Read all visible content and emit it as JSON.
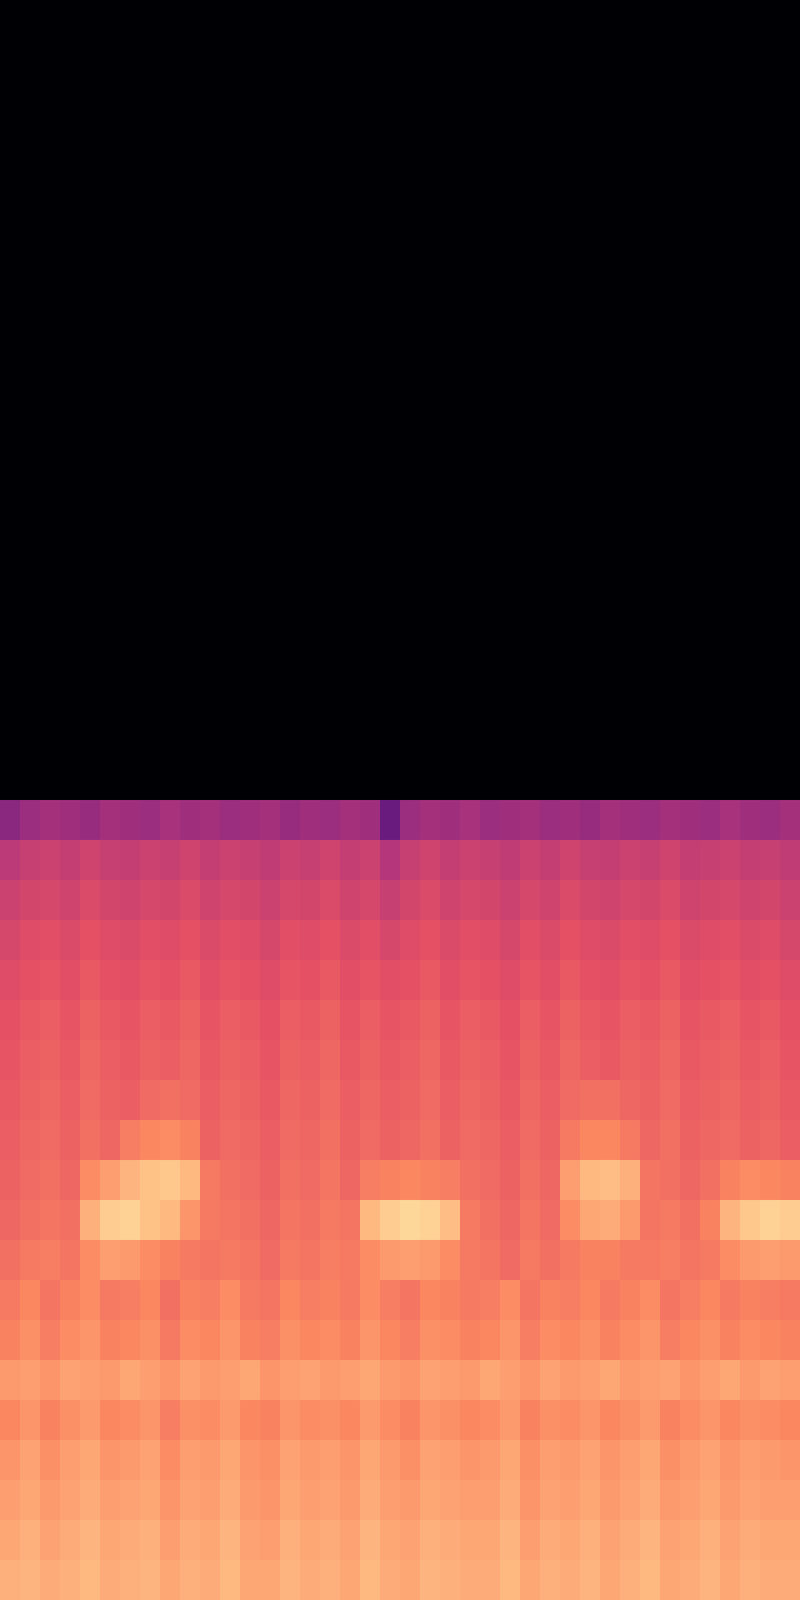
{
  "chart_data": {
    "type": "heatmap",
    "color": "magma",
    "tick_labels": false,
    "zlim": [
      0,
      100
    ],
    "cells": [
      [
        0,
        0,
        0,
        0,
        0,
        0,
        0,
        0,
        0,
        0,
        0,
        0,
        0,
        0,
        0,
        0,
        0,
        0,
        0,
        0,
        0,
        0,
        0,
        0,
        0,
        0,
        0,
        0,
        0,
        0,
        0,
        0,
        0,
        0,
        0,
        0,
        0,
        0,
        0,
        0
      ],
      [
        0,
        0,
        0,
        0,
        0,
        0,
        0,
        0,
        0,
        0,
        0,
        0,
        0,
        0,
        0,
        0,
        0,
        0,
        0,
        0,
        0,
        0,
        0,
        0,
        0,
        0,
        0,
        0,
        0,
        0,
        0,
        0,
        0,
        0,
        0,
        0,
        0,
        0,
        0,
        0
      ],
      [
        0,
        0,
        0,
        0,
        0,
        0,
        0,
        0,
        0,
        0,
        0,
        0,
        0,
        0,
        0,
        0,
        0,
        0,
        0,
        0,
        0,
        0,
        0,
        0,
        0,
        0,
        0,
        0,
        0,
        0,
        0,
        0,
        0,
        0,
        0,
        0,
        0,
        0,
        0,
        0
      ],
      [
        0,
        0,
        0,
        0,
        0,
        0,
        0,
        0,
        0,
        0,
        0,
        0,
        0,
        0,
        0,
        0,
        0,
        0,
        0,
        0,
        0,
        0,
        0,
        0,
        0,
        0,
        0,
        0,
        0,
        0,
        0,
        0,
        0,
        0,
        0,
        0,
        0,
        0,
        0,
        0
      ],
      [
        0,
        0,
        0,
        0,
        0,
        0,
        0,
        0,
        0,
        0,
        0,
        0,
        0,
        0,
        0,
        0,
        0,
        0,
        0,
        0,
        0,
        0,
        0,
        0,
        0,
        0,
        0,
        0,
        0,
        0,
        0,
        0,
        0,
        0,
        0,
        0,
        0,
        0,
        0,
        0
      ],
      [
        0,
        0,
        0,
        0,
        0,
        0,
        0,
        0,
        0,
        0,
        0,
        0,
        0,
        0,
        0,
        0,
        0,
        0,
        0,
        0,
        0,
        0,
        0,
        0,
        0,
        0,
        0,
        0,
        0,
        0,
        0,
        0,
        0,
        0,
        0,
        0,
        0,
        0,
        0,
        0
      ],
      [
        0,
        0,
        0,
        0,
        0,
        0,
        0,
        0,
        0,
        0,
        0,
        0,
        0,
        0,
        0,
        0,
        0,
        0,
        0,
        0,
        0,
        0,
        0,
        0,
        0,
        0,
        0,
        0,
        0,
        0,
        0,
        0,
        0,
        0,
        0,
        0,
        0,
        0,
        0,
        0
      ],
      [
        0,
        0,
        0,
        0,
        0,
        0,
        0,
        0,
        0,
        0,
        0,
        0,
        0,
        0,
        0,
        0,
        0,
        0,
        0,
        0,
        0,
        0,
        0,
        0,
        0,
        0,
        0,
        0,
        0,
        0,
        0,
        0,
        0,
        0,
        0,
        0,
        0,
        0,
        0,
        0
      ],
      [
        0,
        0,
        0,
        0,
        0,
        0,
        0,
        0,
        0,
        0,
        0,
        0,
        0,
        0,
        0,
        0,
        0,
        0,
        0,
        0,
        0,
        0,
        0,
        0,
        0,
        0,
        0,
        0,
        0,
        0,
        0,
        0,
        0,
        0,
        0,
        0,
        0,
        0,
        0,
        0
      ],
      [
        0,
        0,
        0,
        0,
        0,
        0,
        0,
        0,
        0,
        0,
        0,
        0,
        0,
        0,
        0,
        0,
        0,
        0,
        0,
        0,
        0,
        0,
        0,
        0,
        0,
        0,
        0,
        0,
        0,
        0,
        0,
        0,
        0,
        0,
        0,
        0,
        0,
        0,
        0,
        0
      ],
      [
        0,
        0,
        0,
        0,
        0,
        0,
        0,
        0,
        0,
        0,
        0,
        0,
        0,
        0,
        0,
        0,
        0,
        0,
        0,
        0,
        0,
        0,
        0,
        0,
        0,
        0,
        0,
        0,
        0,
        0,
        0,
        0,
        0,
        0,
        0,
        0,
        0,
        0,
        0,
        0
      ],
      [
        0,
        0,
        0,
        0,
        0,
        0,
        0,
        0,
        0,
        0,
        0,
        0,
        0,
        0,
        0,
        0,
        0,
        0,
        0,
        0,
        0,
        0,
        0,
        0,
        0,
        0,
        0,
        0,
        0,
        0,
        0,
        0,
        0,
        0,
        0,
        0,
        0,
        0,
        0,
        0
      ],
      [
        0,
        0,
        0,
        0,
        0,
        0,
        0,
        0,
        0,
        0,
        0,
        0,
        0,
        0,
        0,
        0,
        0,
        0,
        0,
        0,
        0,
        0,
        0,
        0,
        0,
        0,
        0,
        0,
        0,
        0,
        0,
        0,
        0,
        0,
        0,
        0,
        0,
        0,
        0,
        0
      ],
      [
        0,
        0,
        0,
        0,
        0,
        0,
        0,
        0,
        0,
        0,
        0,
        0,
        0,
        0,
        0,
        0,
        0,
        0,
        0,
        0,
        0,
        0,
        0,
        0,
        0,
        0,
        0,
        0,
        0,
        0,
        0,
        0,
        0,
        0,
        0,
        0,
        0,
        0,
        0,
        0
      ],
      [
        0,
        0,
        0,
        0,
        0,
        0,
        0,
        0,
        0,
        0,
        0,
        0,
        0,
        0,
        0,
        0,
        0,
        0,
        0,
        0,
        0,
        0,
        0,
        0,
        0,
        0,
        0,
        0,
        0,
        0,
        0,
        0,
        0,
        0,
        0,
        0,
        0,
        0,
        0,
        0
      ],
      [
        0,
        0,
        0,
        0,
        0,
        0,
        0,
        0,
        0,
        0,
        0,
        0,
        0,
        0,
        0,
        0,
        0,
        0,
        0,
        0,
        0,
        0,
        0,
        0,
        0,
        0,
        0,
        0,
        0,
        0,
        0,
        0,
        0,
        0,
        0,
        0,
        0,
        0,
        0,
        0
      ],
      [
        0,
        0,
        0,
        0,
        0,
        0,
        0,
        0,
        0,
        0,
        0,
        0,
        0,
        0,
        0,
        0,
        0,
        0,
        0,
        0,
        0,
        0,
        0,
        0,
        0,
        0,
        0,
        0,
        0,
        0,
        0,
        0,
        0,
        0,
        0,
        0,
        0,
        0,
        0,
        0
      ],
      [
        0,
        0,
        0,
        0,
        0,
        0,
        0,
        0,
        0,
        0,
        0,
        0,
        0,
        0,
        0,
        0,
        0,
        0,
        0,
        0,
        0,
        0,
        0,
        0,
        0,
        0,
        0,
        0,
        0,
        0,
        0,
        0,
        0,
        0,
        0,
        0,
        0,
        0,
        0,
        0
      ],
      [
        0,
        0,
        0,
        0,
        0,
        0,
        0,
        0,
        0,
        0,
        0,
        0,
        0,
        0,
        0,
        0,
        0,
        0,
        0,
        0,
        0,
        0,
        0,
        0,
        0,
        0,
        0,
        0,
        0,
        0,
        0,
        0,
        0,
        0,
        0,
        0,
        0,
        0,
        0,
        0
      ],
      [
        0,
        0,
        0,
        0,
        0,
        0,
        0,
        0,
        0,
        0,
        0,
        0,
        0,
        0,
        0,
        0,
        0,
        0,
        0,
        0,
        0,
        0,
        0,
        0,
        0,
        0,
        0,
        0,
        0,
        0,
        0,
        0,
        0,
        0,
        0,
        0,
        0,
        0,
        0,
        0
      ],
      [
        40,
        44,
        46,
        45,
        43,
        46,
        45,
        44,
        47,
        45,
        46,
        44,
        45,
        46,
        43,
        45,
        44,
        46,
        45,
        32,
        44,
        46,
        45,
        47,
        44,
        45,
        46,
        44,
        45,
        43,
        46,
        45,
        44,
        46,
        45,
        44,
        47,
        45,
        44,
        46
      ],
      [
        52,
        55,
        56,
        54,
        57,
        55,
        54,
        56,
        55,
        57,
        54,
        56,
        55,
        53,
        56,
        55,
        57,
        54,
        56,
        50,
        55,
        57,
        54,
        56,
        55,
        53,
        56,
        54,
        57,
        55,
        54,
        56,
        55,
        57,
        54,
        55,
        56,
        54,
        55,
        53
      ],
      [
        56,
        58,
        59,
        57,
        60,
        58,
        57,
        59,
        58,
        60,
        57,
        59,
        58,
        56,
        59,
        58,
        60,
        57,
        59,
        55,
        58,
        60,
        57,
        59,
        58,
        56,
        59,
        57,
        60,
        58,
        57,
        59,
        58,
        60,
        57,
        58,
        59,
        57,
        58,
        56
      ],
      [
        59,
        61,
        62,
        60,
        63,
        61,
        60,
        62,
        61,
        63,
        60,
        62,
        61,
        59,
        62,
        61,
        63,
        60,
        62,
        59,
        61,
        63,
        60,
        62,
        61,
        59,
        62,
        60,
        63,
        61,
        60,
        62,
        61,
        63,
        60,
        61,
        62,
        60,
        61,
        59
      ],
      [
        61,
        63,
        64,
        62,
        65,
        63,
        62,
        64,
        63,
        65,
        62,
        64,
        63,
        61,
        64,
        63,
        65,
        62,
        64,
        62,
        63,
        65,
        62,
        64,
        63,
        61,
        64,
        62,
        65,
        63,
        62,
        64,
        63,
        65,
        62,
        63,
        64,
        62,
        63,
        61
      ],
      [
        63,
        65,
        66,
        64,
        67,
        65,
        64,
        66,
        65,
        67,
        64,
        66,
        65,
        63,
        66,
        65,
        67,
        64,
        66,
        64,
        65,
        67,
        64,
        66,
        65,
        63,
        66,
        64,
        67,
        65,
        64,
        66,
        65,
        67,
        64,
        65,
        66,
        64,
        65,
        63
      ],
      [
        64,
        66,
        67,
        65,
        68,
        66,
        65,
        67,
        66,
        68,
        65,
        67,
        66,
        64,
        67,
        66,
        68,
        65,
        67,
        65,
        66,
        68,
        65,
        67,
        66,
        64,
        67,
        65,
        68,
        66,
        65,
        67,
        66,
        68,
        65,
        66,
        67,
        65,
        66,
        64
      ],
      [
        65,
        67,
        68,
        66,
        69,
        67,
        66,
        69,
        70,
        69,
        66,
        68,
        67,
        65,
        68,
        67,
        69,
        66,
        68,
        66,
        67,
        69,
        66,
        68,
        67,
        65,
        68,
        66,
        69,
        70,
        70,
        68,
        67,
        69,
        66,
        67,
        68,
        66,
        67,
        65
      ],
      [
        66,
        68,
        69,
        67,
        70,
        68,
        73,
        75,
        76,
        74,
        67,
        69,
        68,
        66,
        69,
        68,
        70,
        67,
        69,
        67,
        68,
        70,
        67,
        69,
        68,
        66,
        69,
        67,
        72,
        75,
        75,
        72,
        68,
        70,
        67,
        68,
        69,
        67,
        68,
        66
      ],
      [
        67,
        69,
        70,
        68,
        76,
        80,
        85,
        88,
        89,
        86,
        72,
        70,
        69,
        67,
        70,
        69,
        71,
        68,
        73,
        74,
        75,
        74,
        73,
        70,
        69,
        67,
        70,
        68,
        80,
        86,
        87,
        84,
        71,
        70,
        68,
        70,
        74,
        76,
        75,
        74
      ],
      [
        68,
        70,
        71,
        70,
        84,
        90,
        91,
        88,
        86,
        78,
        72,
        71,
        70,
        68,
        71,
        70,
        72,
        71,
        86,
        90,
        92,
        91,
        87,
        72,
        70,
        68,
        71,
        69,
        76,
        82,
        83,
        79,
        71,
        72,
        70,
        74,
        85,
        89,
        91,
        90
      ],
      [
        70,
        72,
        73,
        71,
        76,
        80,
        79,
        76,
        74,
        72,
        71,
        72,
        71,
        69,
        72,
        71,
        73,
        72,
        76,
        79,
        80,
        79,
        76,
        72,
        71,
        69,
        72,
        70,
        72,
        74,
        74,
        72,
        72,
        73,
        71,
        72,
        76,
        79,
        80,
        79
      ],
      [
        72,
        75,
        71,
        74,
        76,
        72,
        73,
        75,
        70,
        74,
        73,
        76,
        72,
        71,
        75,
        73,
        74,
        72,
        76,
        73,
        71,
        75,
        74,
        72,
        73,
        76,
        71,
        74,
        73,
        75,
        72,
        74,
        76,
        71,
        73,
        75,
        72,
        74,
        73,
        72
      ],
      [
        74,
        77,
        73,
        76,
        78,
        74,
        75,
        77,
        72,
        76,
        75,
        78,
        74,
        73,
        77,
        75,
        76,
        74,
        78,
        75,
        73,
        77,
        76,
        74,
        75,
        78,
        73,
        76,
        75,
        77,
        74,
        76,
        78,
        73,
        75,
        77,
        74,
        76,
        75,
        74
      ],
      [
        79,
        80,
        78,
        81,
        80,
        79,
        82,
        80,
        78,
        81,
        79,
        80,
        82,
        78,
        80,
        81,
        79,
        80,
        82,
        79,
        78,
        81,
        80,
        79,
        82,
        80,
        78,
        81,
        79,
        80,
        82,
        79,
        80,
        81,
        78,
        80,
        82,
        79,
        81,
        80
      ],
      [
        75,
        78,
        74,
        77,
        79,
        75,
        76,
        78,
        73,
        77,
        76,
        79,
        75,
        74,
        78,
        76,
        77,
        75,
        79,
        76,
        74,
        78,
        77,
        75,
        76,
        79,
        74,
        77,
        76,
        78,
        75,
        77,
        79,
        74,
        76,
        78,
        75,
        77,
        76,
        75
      ],
      [
        78,
        81,
        77,
        80,
        82,
        78,
        79,
        81,
        76,
        80,
        79,
        82,
        78,
        77,
        81,
        79,
        80,
        78,
        82,
        79,
        77,
        81,
        80,
        78,
        79,
        82,
        77,
        80,
        79,
        81,
        78,
        80,
        82,
        77,
        79,
        81,
        78,
        80,
        79,
        78
      ],
      [
        80,
        82,
        79,
        81,
        83,
        80,
        81,
        82,
        78,
        81,
        80,
        83,
        79,
        78,
        82,
        80,
        81,
        79,
        83,
        80,
        79,
        82,
        81,
        80,
        80,
        83,
        78,
        81,
        80,
        82,
        79,
        81,
        83,
        79,
        80,
        82,
        79,
        81,
        80,
        80
      ],
      [
        82,
        84,
        81,
        83,
        85,
        82,
        83,
        84,
        80,
        83,
        82,
        85,
        81,
        80,
        84,
        82,
        83,
        81,
        85,
        82,
        81,
        84,
        83,
        82,
        82,
        85,
        80,
        83,
        82,
        84,
        81,
        83,
        85,
        81,
        82,
        84,
        81,
        83,
        82,
        82
      ],
      [
        84,
        85,
        83,
        84,
        86,
        83,
        84,
        85,
        82,
        84,
        83,
        86,
        82,
        82,
        85,
        83,
        84,
        82,
        86,
        83,
        82,
        85,
        84,
        83,
        83,
        86,
        82,
        84,
        83,
        85,
        82,
        84,
        86,
        82,
        83,
        85,
        82,
        84,
        83,
        83
      ]
    ]
  }
}
